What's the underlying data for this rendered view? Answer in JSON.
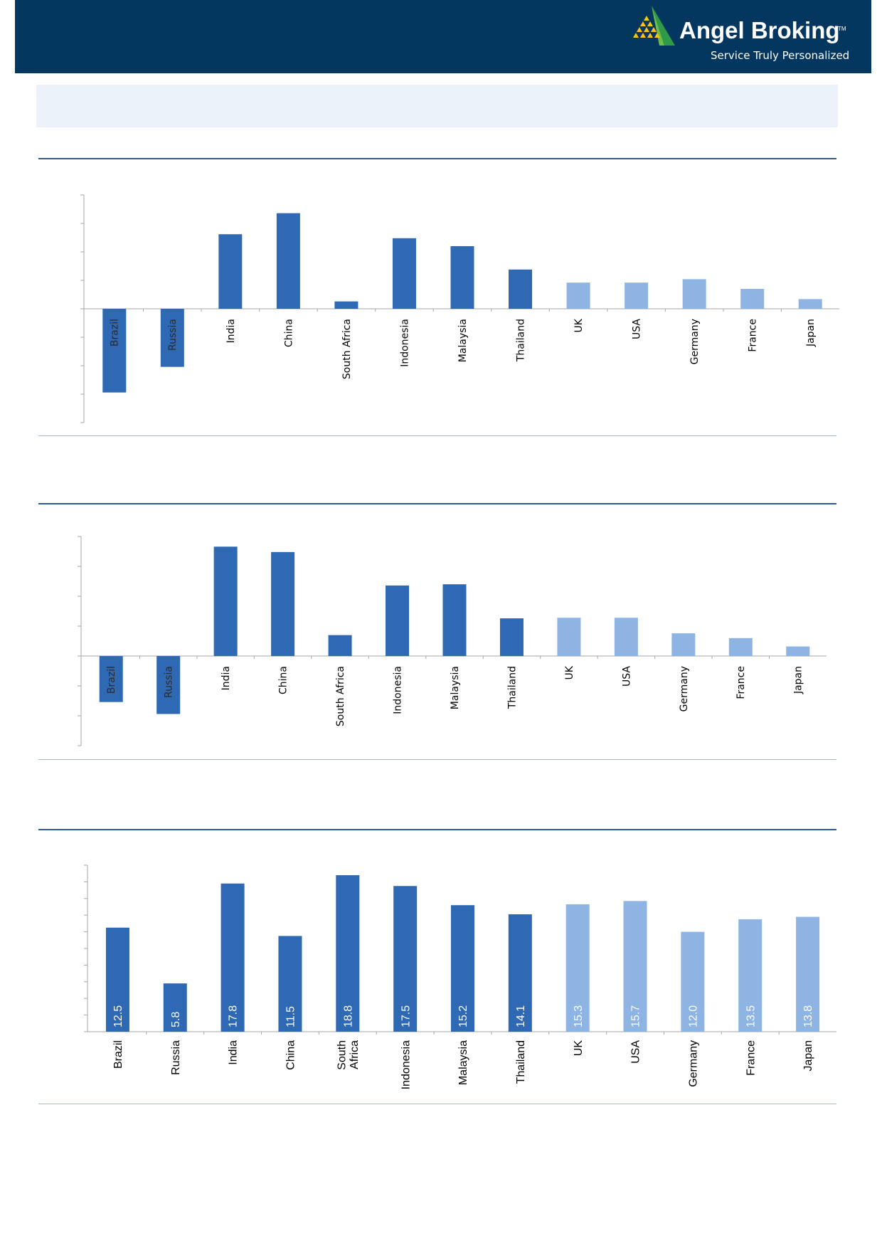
{
  "brand": {
    "name": "Angel Broking",
    "trademark": "TM",
    "tagline": "Service Truly Personalized"
  },
  "colors": {
    "header_bg": "#04375f",
    "band_bg": "#ebf1f8",
    "emerging_bar": "#2f68b3",
    "developed_bar": "#8eb4e3",
    "rule": "#2e5a92"
  },
  "chart_data": [
    {
      "type": "bar",
      "categories": [
        "Brazil",
        "Russia",
        "India",
        "China",
        "South Africa",
        "Indonesia",
        "Malaysia",
        "Thailand",
        "UK",
        "USA",
        "Germany",
        "France",
        "Japan"
      ],
      "values": [
        -14.7,
        -10.2,
        13.1,
        16.8,
        1.3,
        12.4,
        11.0,
        6.9,
        4.6,
        4.6,
        5.2,
        3.5,
        1.7
      ],
      "groups": [
        "emerging",
        "emerging",
        "emerging",
        "emerging",
        "emerging",
        "emerging",
        "emerging",
        "emerging",
        "developed",
        "developed",
        "developed",
        "developed",
        "developed"
      ],
      "ylim": [
        -20,
        20
      ],
      "yticks": [
        -20,
        -15,
        -10,
        -5,
        0,
        5,
        10,
        15,
        20
      ],
      "title": "",
      "xlabel": "",
      "ylabel": ""
    },
    {
      "type": "bar",
      "categories": [
        "Brazil",
        "Russia",
        "India",
        "China",
        "South Africa",
        "Indonesia",
        "Malaysia",
        "Thailand",
        "UK",
        "USA",
        "Germany",
        "France",
        "Japan"
      ],
      "values": [
        -7.7,
        -9.7,
        18.3,
        17.4,
        3.5,
        11.8,
        12.0,
        6.3,
        6.4,
        6.4,
        3.8,
        3.0,
        1.6
      ],
      "groups": [
        "emerging",
        "emerging",
        "emerging",
        "emerging",
        "emerging",
        "emerging",
        "emerging",
        "emerging",
        "developed",
        "developed",
        "developed",
        "developed",
        "developed"
      ],
      "ylim": [
        -15,
        20
      ],
      "yticks": [
        -15,
        -10,
        -5,
        0,
        5,
        10,
        15,
        20
      ],
      "title": "",
      "xlabel": "",
      "ylabel": ""
    },
    {
      "type": "bar",
      "categories": [
        "Brazil",
        "Russia",
        "India",
        "China",
        "South\nAfrica",
        "Indonesia",
        "Malaysia",
        "Thailand",
        "UK",
        "USA",
        "Germany",
        "France",
        "Japan"
      ],
      "values": [
        12.5,
        5.8,
        17.8,
        11.5,
        18.8,
        17.5,
        15.2,
        14.1,
        15.3,
        15.7,
        12.0,
        13.5,
        13.8
      ],
      "data_labels": [
        "12.5",
        "5.8",
        "17.8",
        "11.5",
        "18.8",
        "17.5",
        "15.2",
        "14.1",
        "15.3",
        "15.7",
        "12.0",
        "13.5",
        "13.8"
      ],
      "groups": [
        "emerging",
        "emerging",
        "emerging",
        "emerging",
        "emerging",
        "emerging",
        "emerging",
        "emerging",
        "developed",
        "developed",
        "developed",
        "developed",
        "developed"
      ],
      "ylim": [
        0,
        20
      ],
      "yticks": [
        0,
        2,
        4,
        6,
        8,
        10,
        12,
        14,
        16,
        18,
        20
      ],
      "title": "",
      "xlabel": "",
      "ylabel": ""
    }
  ]
}
